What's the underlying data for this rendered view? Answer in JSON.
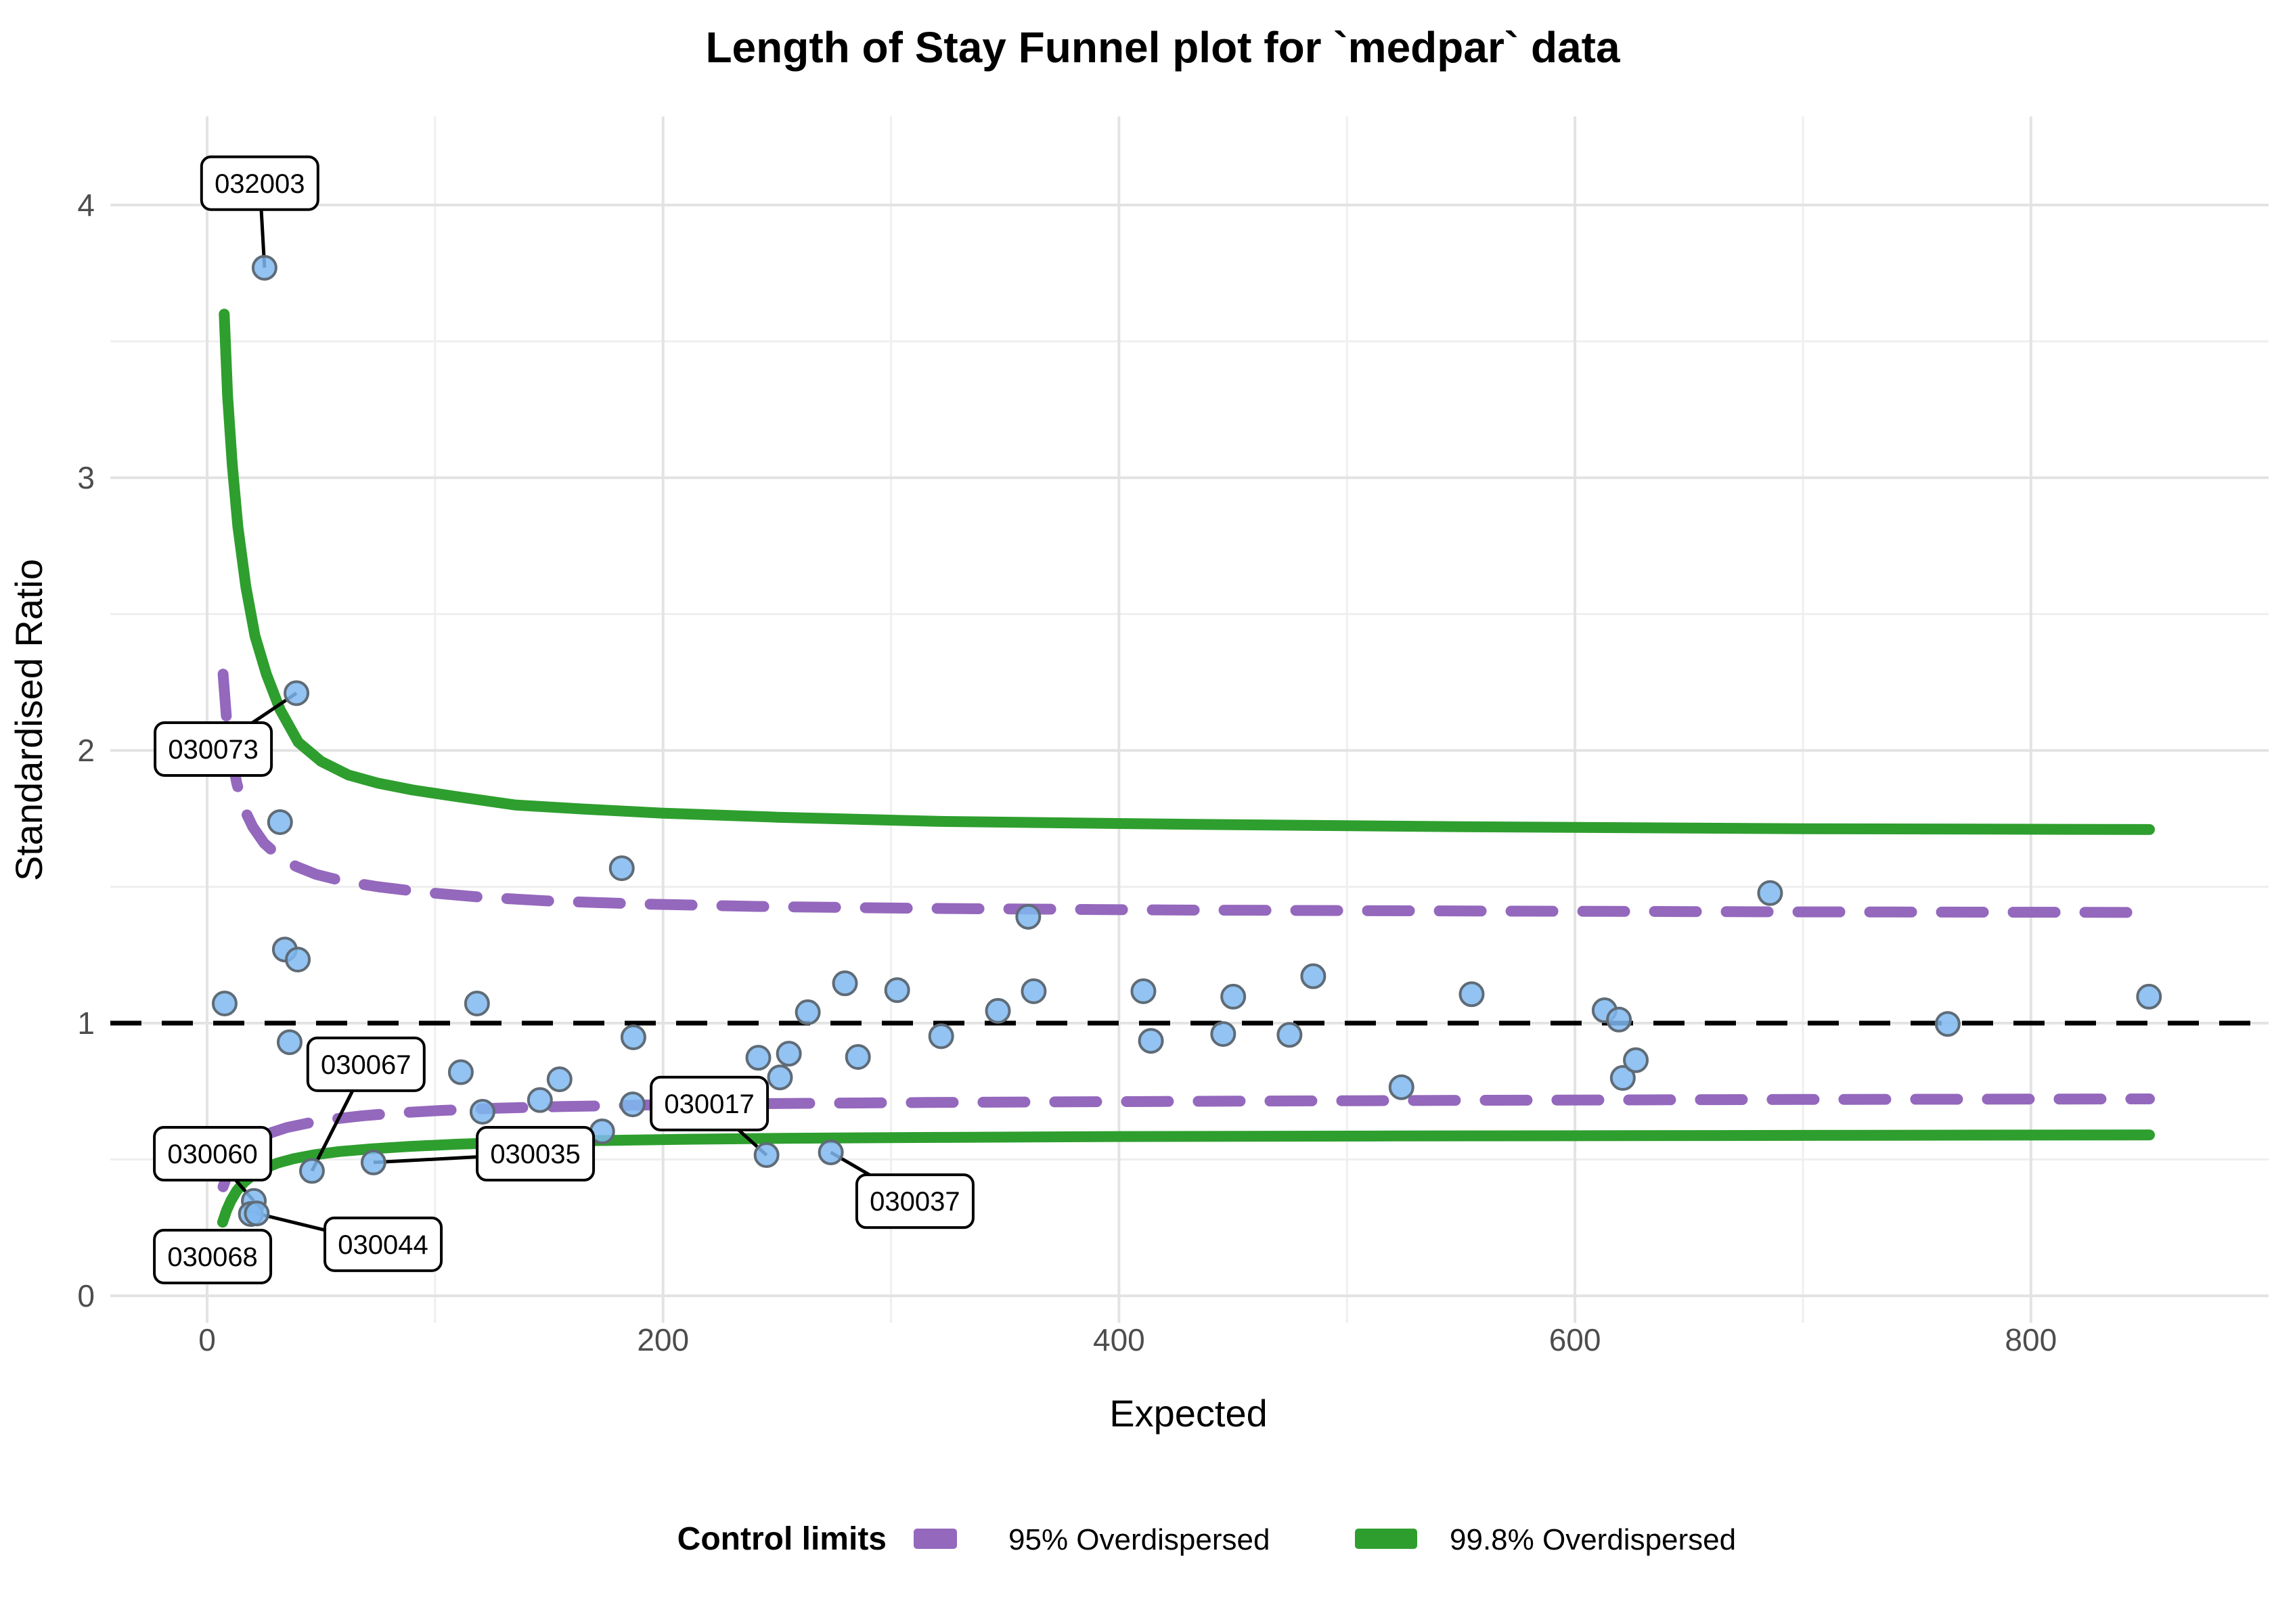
{
  "title": "Length of Stay Funnel plot for `medpar` data",
  "axes": {
    "x": {
      "label": "Expected",
      "ticks": [
        0,
        200,
        400,
        600,
        800
      ],
      "range": [
        -42.5,
        904
      ]
    },
    "y": {
      "label": "Standardised Ratio",
      "ticks": [
        0,
        1,
        2,
        3,
        4
      ],
      "minor_ticks": [
        0.5,
        1.5,
        2.5,
        3.5
      ],
      "range": [
        -0.1,
        4.33
      ]
    },
    "x_minor_gridlines": [
      100,
      300,
      500,
      700
    ]
  },
  "colors": {
    "limit_95": "#9468BD",
    "limit_998": "#2E9E2E",
    "point_fill": "#7FB9F0",
    "point_stroke": "#5F6B76",
    "center_line": "#000000",
    "grid_major": "#E3E3E3",
    "grid_minor": "#EFEFEF",
    "callout_bg": "#FFFFFF",
    "callout_border": "#000000"
  },
  "legend": {
    "title": "Control limits",
    "items": [
      {
        "label": "95% Overdispersed",
        "color": "#9468BD",
        "dashed": true
      },
      {
        "label": "99.8% Overdispersed",
        "color": "#2E9E2E",
        "dashed": false
      }
    ]
  },
  "chart_data": {
    "type": "scatter",
    "title": "Length of Stay Funnel plot for `medpar` data",
    "xlabel": "Expected",
    "ylabel": "Standardised Ratio",
    "xlim": [
      -42.5,
      904
    ],
    "ylim": [
      -0.1,
      4.33
    ],
    "grid": true,
    "legend_position": "bottom",
    "center_line_y": 1.0,
    "points": [
      [
        7.7,
        1.072
      ],
      [
        32.0,
        1.737
      ],
      [
        34.1,
        1.27
      ],
      [
        39.8,
        1.233
      ],
      [
        36.2,
        0.93
      ],
      [
        111.3,
        0.82
      ],
      [
        118.4,
        1.072
      ],
      [
        120.8,
        0.675
      ],
      [
        146.0,
        0.718
      ],
      [
        154.6,
        0.794
      ],
      [
        173.3,
        0.603
      ],
      [
        181.9,
        1.568
      ],
      [
        186.7,
        0.702
      ],
      [
        187.0,
        0.948
      ],
      [
        241.8,
        0.873
      ],
      [
        251.3,
        0.801
      ],
      [
        255.2,
        0.888
      ],
      [
        263.5,
        1.04
      ],
      [
        279.8,
        1.146
      ],
      [
        285.5,
        0.876
      ],
      [
        302.7,
        1.121
      ],
      [
        322.0,
        0.952
      ],
      [
        346.9,
        1.045
      ],
      [
        360.2,
        1.39
      ],
      [
        362.6,
        1.117
      ],
      [
        410.7,
        1.117
      ],
      [
        414.0,
        0.935
      ],
      [
        445.7,
        0.96
      ],
      [
        450.1,
        1.097
      ],
      [
        474.8,
        0.957
      ],
      [
        485.2,
        1.172
      ],
      [
        523.9,
        0.765
      ],
      [
        554.7,
        1.106
      ],
      [
        613.0,
        1.047
      ],
      [
        619.3,
        1.013
      ],
      [
        621.0,
        0.799
      ],
      [
        626.7,
        0.864
      ],
      [
        685.6,
        1.477
      ],
      [
        763.5,
        0.997
      ],
      [
        851.8,
        1.097
      ]
    ],
    "labelled_points": [
      {
        "label": "032003",
        "x": 25.2,
        "y": 3.77,
        "label_at": {
          "x": 23.1,
          "y": 4.08
        },
        "connector": true
      },
      {
        "label": "030073",
        "x": 39.2,
        "y": 2.21,
        "label_at": {
          "x": 2.7,
          "y": 2.005
        },
        "connector": true
      },
      {
        "label": "030067",
        "x": 46.0,
        "y": 0.458,
        "label_at": {
          "x": 69.7,
          "y": 0.849
        },
        "connector": true
      },
      {
        "label": "030060",
        "x": 20.5,
        "y": 0.348,
        "label_at": {
          "x": 2.4,
          "y": 0.521
        },
        "connector": true
      },
      {
        "label": "030068",
        "x": 19.2,
        "y": 0.3,
        "label_at": {
          "x": 2.4,
          "y": 0.144
        },
        "connector": false
      },
      {
        "label": "030044",
        "x": 21.8,
        "y": 0.302,
        "label_at": {
          "x": 77.2,
          "y": 0.189
        },
        "connector": true
      },
      {
        "label": "030035",
        "x": 73.0,
        "y": 0.489,
        "label_at": {
          "x": 144.0,
          "y": 0.521
        },
        "connector": true
      },
      {
        "label": "030017",
        "x": 245.4,
        "y": 0.516,
        "label_at": {
          "x": 220.3,
          "y": 0.705
        },
        "connector": true
      },
      {
        "label": "030037",
        "x": 273.6,
        "y": 0.526,
        "label_at": {
          "x": 310.5,
          "y": 0.347
        },
        "connector": true
      }
    ],
    "control_limits": [
      {
        "name": "95% Overdispersed",
        "style": "dashed",
        "color": "#9468BD",
        "upper": [
          [
            7,
            2.28
          ],
          [
            8.5,
            2.12
          ],
          [
            10.5,
            1.99
          ],
          [
            13,
            1.88
          ],
          [
            16,
            1.79
          ],
          [
            20,
            1.72
          ],
          [
            25,
            1.66
          ],
          [
            31,
            1.615
          ],
          [
            39,
            1.575
          ],
          [
            48,
            1.545
          ],
          [
            60,
            1.52
          ],
          [
            75,
            1.5
          ],
          [
            95,
            1.48
          ],
          [
            120,
            1.462
          ],
          [
            150,
            1.448
          ],
          [
            190,
            1.437
          ],
          [
            240,
            1.428
          ],
          [
            310,
            1.421
          ],
          [
            420,
            1.415
          ],
          [
            560,
            1.411
          ],
          [
            700,
            1.408
          ],
          [
            852,
            1.406
          ]
        ],
        "lower": [
          [
            7,
            0.4
          ],
          [
            9,
            0.445
          ],
          [
            11.5,
            0.485
          ],
          [
            14.5,
            0.52
          ],
          [
            18,
            0.55
          ],
          [
            22.5,
            0.577
          ],
          [
            28,
            0.598
          ],
          [
            35,
            0.617
          ],
          [
            44,
            0.633
          ],
          [
            55,
            0.648
          ],
          [
            68,
            0.66
          ],
          [
            84,
            0.671
          ],
          [
            103,
            0.68
          ],
          [
            127,
            0.688
          ],
          [
            156,
            0.694
          ],
          [
            195,
            0.7
          ],
          [
            245,
            0.705
          ],
          [
            315,
            0.709
          ],
          [
            420,
            0.713
          ],
          [
            560,
            0.717
          ],
          [
            700,
            0.72
          ],
          [
            852,
            0.722
          ]
        ]
      },
      {
        "name": "99.8% Overdispersed",
        "style": "solid",
        "color": "#2E9E2E",
        "upper": [
          [
            7.5,
            3.6
          ],
          [
            9,
            3.3
          ],
          [
            11,
            3.05
          ],
          [
            13.5,
            2.82
          ],
          [
            17,
            2.6
          ],
          [
            21,
            2.42
          ],
          [
            26,
            2.28
          ],
          [
            32,
            2.15
          ],
          [
            40,
            2.03
          ],
          [
            50,
            1.96
          ],
          [
            62,
            1.91
          ],
          [
            75,
            1.88
          ],
          [
            90,
            1.855
          ],
          [
            110,
            1.83
          ],
          [
            135,
            1.8
          ],
          [
            165,
            1.785
          ],
          [
            200,
            1.77
          ],
          [
            250,
            1.755
          ],
          [
            320,
            1.74
          ],
          [
            420,
            1.73
          ],
          [
            550,
            1.72
          ],
          [
            700,
            1.713
          ],
          [
            852,
            1.71
          ]
        ],
        "lower": [
          [
            6.8,
            0.27
          ],
          [
            8.5,
            0.312
          ],
          [
            10.5,
            0.35
          ],
          [
            13,
            0.385
          ],
          [
            16,
            0.415
          ],
          [
            20,
            0.443
          ],
          [
            25,
            0.467
          ],
          [
            31,
            0.487
          ],
          [
            38,
            0.503
          ],
          [
            47,
            0.517
          ],
          [
            58,
            0.529
          ],
          [
            72,
            0.539
          ],
          [
            89,
            0.548
          ],
          [
            110,
            0.556
          ],
          [
            136,
            0.563
          ],
          [
            168,
            0.569
          ],
          [
            208,
            0.574
          ],
          [
            258,
            0.578
          ],
          [
            320,
            0.581
          ],
          [
            400,
            0.584
          ],
          [
            520,
            0.586
          ],
          [
            680,
            0.588
          ],
          [
            852,
            0.59
          ]
        ]
      }
    ]
  }
}
